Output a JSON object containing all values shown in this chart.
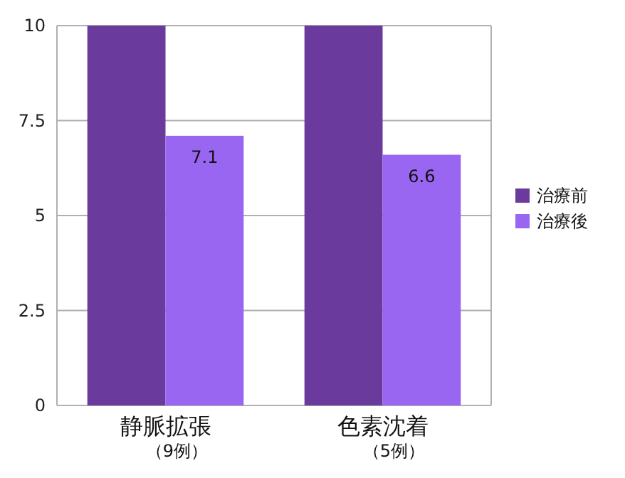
{
  "chart_data": {
    "type": "bar",
    "categories": [
      "静脈拡張（9例）",
      "色素沈着（5例）"
    ],
    "series": [
      {
        "name": "治療前",
        "color": "#6a3a9d",
        "values": [
          10,
          10
        ]
      },
      {
        "name": "治療後",
        "color": "#9966f2",
        "values": [
          7.1,
          6.6
        ],
        "value_labels": [
          "7.1",
          "6.6"
        ]
      }
    ],
    "ylim": [
      0,
      10
    ],
    "yticks": [
      0,
      2.5,
      5,
      7.5,
      10
    ],
    "grid": "y",
    "legend": "right"
  }
}
